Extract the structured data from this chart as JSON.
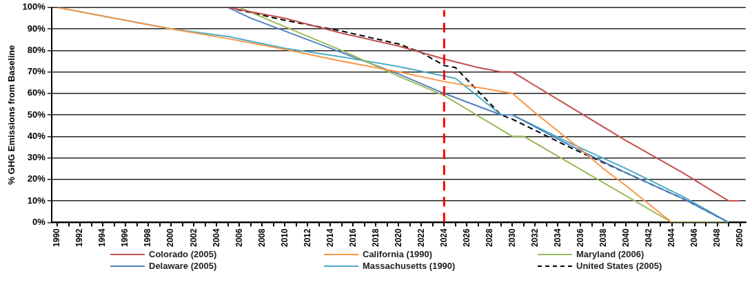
{
  "chart_data": {
    "type": "line",
    "ylabel": "% GHG Emissions from Baseline",
    "xlim": [
      1989.5,
      2050.5
    ],
    "ylim": [
      0,
      100
    ],
    "yticks": [
      {
        "value": 0,
        "label": "0%"
      },
      {
        "value": 10,
        "label": "10%"
      },
      {
        "value": 20,
        "label": "20%"
      },
      {
        "value": 30,
        "label": "30%"
      },
      {
        "value": 40,
        "label": "40%"
      },
      {
        "value": 50,
        "label": "50%"
      },
      {
        "value": 60,
        "label": "60%"
      },
      {
        "value": 70,
        "label": "70%"
      },
      {
        "value": 80,
        "label": "80%"
      },
      {
        "value": 90,
        "label": "90%"
      },
      {
        "value": 100,
        "label": "100%"
      }
    ],
    "xticks": [
      1990,
      {
        "value": 1991,
        "label": null
      },
      1992,
      {
        "value": 1993,
        "label": null
      },
      1994,
      {
        "value": 1995,
        "label": null
      },
      1996,
      {
        "value": 1997,
        "label": null
      },
      1998,
      {
        "value": 1999,
        "label": null
      },
      2000,
      {
        "value": 2001,
        "label": null
      },
      2002,
      {
        "value": 2003,
        "label": null
      },
      2004,
      {
        "value": 2005,
        "label": null
      },
      2006,
      {
        "value": 2007,
        "label": null
      },
      2008,
      {
        "value": 2009,
        "label": null
      },
      2010,
      {
        "value": 2011,
        "label": null
      },
      2012,
      {
        "value": 2013,
        "label": null
      },
      2014,
      {
        "value": 2015,
        "label": null
      },
      2016,
      {
        "value": 2017,
        "label": null
      },
      2018,
      {
        "value": 2019,
        "label": null
      },
      2020,
      {
        "value": 2021,
        "label": null
      },
      2022,
      {
        "value": 2023,
        "label": null
      },
      2024,
      {
        "value": 2025,
        "label": null
      },
      2026,
      {
        "value": 2027,
        "label": null
      },
      2028,
      {
        "value": 2029,
        "label": null
      },
      2030,
      {
        "value": 2031,
        "label": null
      },
      2032,
      {
        "value": 2033,
        "label": null
      },
      2034,
      {
        "value": 2035,
        "label": null
      },
      2036,
      {
        "value": 2037,
        "label": null
      },
      2038,
      {
        "value": 2039,
        "label": null
      },
      2040,
      {
        "value": 2041,
        "label": null
      },
      2042,
      {
        "value": 2043,
        "label": null
      },
      2044,
      {
        "value": 2045,
        "label": null
      },
      2046,
      {
        "value": 2047,
        "label": null
      },
      2048,
      {
        "value": 2049,
        "label": null
      },
      2050
    ],
    "grid": "y",
    "legend": "bottom",
    "marker": "none",
    "line_style": "solid",
    "ref_lines": [
      {
        "axis": "x",
        "value": 2024,
        "color": "#ff0000",
        "line_style": "dashed"
      }
    ],
    "series": [
      {
        "name": "Colorado (2005)",
        "color": "#c0504d",
        "x": [
          2005,
          2010,
          2015,
          2020,
          2024,
          2027,
          2029,
          2030,
          2035,
          2040,
          2045,
          2049,
          2050
        ],
        "values": [
          100,
          95,
          88,
          82,
          76,
          72,
          70,
          70,
          54,
          38,
          23,
          10,
          10
        ]
      },
      {
        "name": "California (1990)",
        "color": "#f79646",
        "x": [
          1990,
          1995,
          2000,
          2005,
          2010,
          2015,
          2020,
          2024,
          2030,
          2032,
          2036,
          2038,
          2040,
          2044
        ],
        "values": [
          100,
          95,
          90,
          85.5,
          80.5,
          75,
          70,
          65.5,
          60,
          51,
          34,
          25,
          17,
          0
        ]
      },
      {
        "name": "Maryland (2006)",
        "color": "#9bbb59",
        "x": [
          2006,
          2010,
          2015,
          2020,
          2024,
          2030,
          2031,
          2044,
          2049
        ],
        "values": [
          100,
          91,
          80,
          68,
          59,
          40,
          40,
          0,
          0
        ]
      },
      {
        "name": "Delaware (2005)",
        "color": "#4f81bd",
        "x": [
          2005,
          2007,
          2010,
          2015,
          2020,
          2024,
          2029,
          2030,
          2035,
          2040,
          2045,
          2049
        ],
        "values": [
          100,
          95,
          89,
          79,
          69,
          60,
          50,
          50,
          36,
          23,
          11,
          0
        ]
      },
      {
        "name": "Massachusetts (1990)",
        "color": "#4bacc6",
        "x": [
          1990,
          1995,
          2000,
          2005,
          2010,
          2015,
          2020,
          2025,
          2029,
          2030,
          2035,
          2040,
          2045,
          2049
        ],
        "values": [
          100,
          null,
          90,
          86.5,
          81,
          77,
          72.5,
          67,
          50,
          50,
          37,
          25,
          12,
          0
        ]
      },
      {
        "name": "United States (2005)",
        "color": "#000000",
        "line_style": "dashed",
        "x": [
          2005,
          2010,
          2015,
          2020,
          2022,
          2024,
          2025,
          2029,
          2030,
          2035,
          2040,
          2045,
          2049,
          2050
        ],
        "values": [
          100,
          94,
          89,
          83,
          79,
          73,
          72,
          50,
          48,
          35,
          23,
          11,
          0,
          0
        ]
      }
    ]
  }
}
